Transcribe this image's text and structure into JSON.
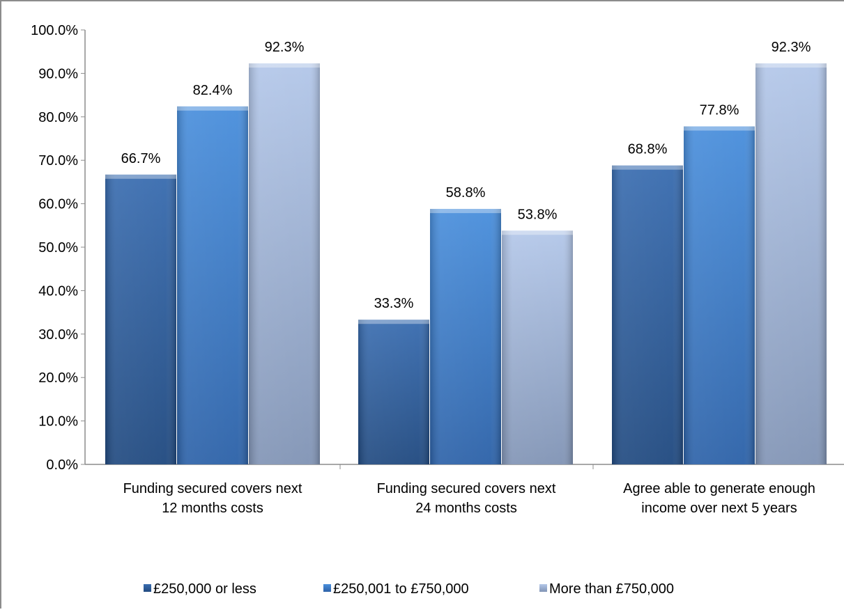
{
  "chart_data": {
    "type": "bar",
    "categories": [
      [
        "Funding secured covers next",
        "12 months costs"
      ],
      [
        "Funding secured covers next",
        "24 months costs"
      ],
      [
        "Agree able to generate enough",
        "income over next 5 years"
      ]
    ],
    "series": [
      {
        "name": "£250,000 or less",
        "values": [
          66.7,
          33.3,
          68.8
        ],
        "data_labels": [
          "66.7%",
          "33.3%",
          "68.8%"
        ],
        "color": "#2f5f9e"
      },
      {
        "name": "£250,001 to £750,000",
        "values": [
          82.4,
          58.8,
          77.8
        ],
        "data_labels": [
          "82.4%",
          "58.8%",
          "77.8%"
        ],
        "color": "#3e82d2"
      },
      {
        "name": "More than £750,000",
        "values": [
          92.3,
          53.8,
          92.3
        ],
        "data_labels": [
          "92.3%",
          "53.8%",
          "92.3%"
        ],
        "color": "#a4b9de"
      }
    ],
    "y_ticks": [
      "0.0%",
      "10.0%",
      "20.0%",
      "30.0%",
      "40.0%",
      "50.0%",
      "60.0%",
      "70.0%",
      "80.0%",
      "90.0%",
      "100.0%"
    ],
    "ylim": [
      0,
      100
    ],
    "grid": false,
    "legend_position": "bottom"
  }
}
